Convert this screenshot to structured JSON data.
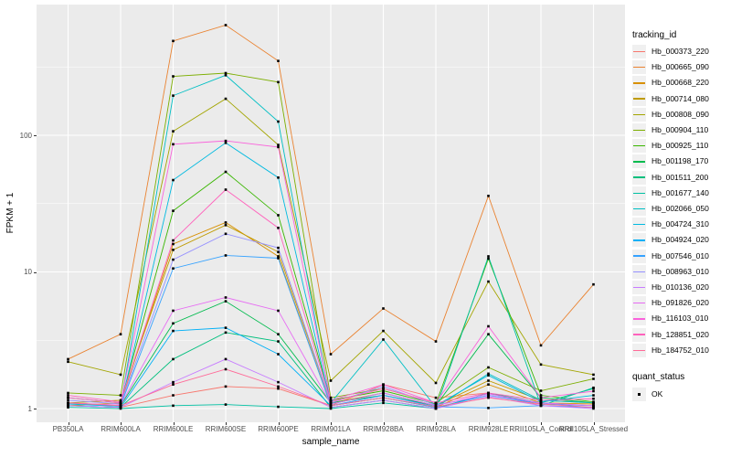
{
  "axes": {
    "x_title": "sample_name",
    "y_title": "FPKM + 1",
    "y_tick_labels": [
      "1",
      "10",
      "100"
    ]
  },
  "legend": {
    "tracking_title": "tracking_id",
    "quant_title": "quant_status",
    "quant_items": [
      {
        "label": "OK"
      }
    ]
  },
  "chart_data": {
    "type": "line",
    "title": "",
    "xlabel": "sample_name",
    "ylabel": "FPKM + 1",
    "y_scale": "log10",
    "grid": true,
    "legend_position": "right",
    "panel_bg": "#EBEBEB",
    "gridline_color": "#FFFFFF",
    "point_color": "#000000",
    "point_shape": "filled-square (quant_status = OK)",
    "y_ticks": [
      1,
      10,
      100
    ],
    "y_minor_gridlines": [
      3.1623,
      31.623,
      316.23
    ],
    "ylim_approx": [
      1,
      870
    ],
    "categories": [
      "PB350LA",
      "RRIM600LA",
      "RRIM600LE",
      "RRIM600SE",
      "RRIM600PE",
      "RRIM901LA",
      "RRIM928BA",
      "RRIM928LA",
      "RRIM928LE",
      "RRII105LA_Control",
      "RRII105LA_Stressed"
    ],
    "series": [
      {
        "name": "Hb_000373_220",
        "color": "#F8766D",
        "values": [
          1.05,
          1.02,
          1.25,
          1.45,
          1.4,
          1.05,
          1.5,
          1.2,
          1.3,
          1.05,
          1.02
        ]
      },
      {
        "name": "Hb_000665_090",
        "color": "#EA8331",
        "values": [
          2.3,
          3.5,
          490,
          640,
          350,
          2.5,
          5.4,
          3.1,
          36,
          2.9,
          8.1
        ]
      },
      {
        "name": "Hb_000668_220",
        "color": "#D89000",
        "values": [
          1.05,
          1.1,
          16,
          23,
          13,
          1.05,
          1.2,
          1.02,
          1.5,
          1.1,
          1.08
        ]
      },
      {
        "name": "Hb_000714_080",
        "color": "#C09B00",
        "values": [
          1.1,
          1.15,
          14.5,
          22,
          14,
          1.1,
          1.3,
          1.05,
          1.6,
          1.15,
          1.1
        ]
      },
      {
        "name": "Hb_000808_090",
        "color": "#A3A500",
        "values": [
          2.2,
          1.77,
          107,
          185,
          85,
          1.6,
          3.7,
          1.54,
          8.5,
          2.1,
          1.77
        ]
      },
      {
        "name": "Hb_000904_110",
        "color": "#7CAE00",
        "values": [
          1.3,
          1.25,
          270,
          285,
          245,
          1.2,
          1.4,
          1.1,
          2.0,
          1.35,
          1.65
        ]
      },
      {
        "name": "Hb_000925_110",
        "color": "#39B600",
        "values": [
          1.2,
          1.1,
          28,
          54,
          26,
          1.15,
          1.35,
          1.08,
          12.5,
          1.25,
          1.12
        ]
      },
      {
        "name": "Hb_001198_170",
        "color": "#00BB4E",
        "values": [
          1.1,
          1.05,
          4.2,
          6.1,
          3.5,
          1.1,
          1.25,
          1.05,
          3.5,
          1.2,
          1.1
        ]
      },
      {
        "name": "Hb_001511_200",
        "color": "#00BF7D",
        "values": [
          1.05,
          1.02,
          2.3,
          3.6,
          3.1,
          1.02,
          1.15,
          1.0,
          1.3,
          1.1,
          1.4
        ]
      },
      {
        "name": "Hb_001677_140",
        "color": "#00C1A3",
        "values": [
          1.02,
          1.0,
          1.05,
          1.07,
          1.03,
          1.0,
          1.1,
          1.0,
          13.0,
          1.05,
          1.42
        ]
      },
      {
        "name": "Hb_002066_050",
        "color": "#00BFC4",
        "values": [
          1.1,
          1.05,
          195,
          275,
          126,
          1.1,
          3.2,
          1.02,
          1.8,
          1.15,
          1.1
        ]
      },
      {
        "name": "Hb_004724_310",
        "color": "#00BAE0",
        "values": [
          1.08,
          1.04,
          47,
          88,
          49,
          1.08,
          1.3,
          1.05,
          1.75,
          1.12,
          1.25
        ]
      },
      {
        "name": "Hb_004924_020",
        "color": "#00B0F6",
        "values": [
          1.05,
          1.02,
          3.7,
          3.9,
          2.5,
          1.05,
          1.2,
          1.02,
          1.25,
          1.08,
          1.05
        ]
      },
      {
        "name": "Hb_007546_010",
        "color": "#35A2FF",
        "values": [
          1.1,
          1.05,
          10.6,
          13.2,
          12.6,
          1.05,
          1.25,
          1.03,
          1.01,
          1.05,
          1.02
        ]
      },
      {
        "name": "Hb_008963_010",
        "color": "#9590FF",
        "values": [
          1.15,
          1.08,
          12.3,
          19,
          15,
          1.1,
          1.45,
          1.06,
          1.25,
          1.1,
          1.05
        ]
      },
      {
        "name": "Hb_010136_020",
        "color": "#C77CFF",
        "values": [
          1.05,
          1.02,
          1.56,
          2.3,
          1.56,
          1.02,
          1.15,
          1.0,
          1.22,
          1.05,
          1.0
        ]
      },
      {
        "name": "Hb_091826_020",
        "color": "#E76BF3",
        "values": [
          1.1,
          1.06,
          5.2,
          6.5,
          5.2,
          1.08,
          1.3,
          1.05,
          1.28,
          1.1,
          1.05
        ]
      },
      {
        "name": "Hb_116103_010",
        "color": "#FA62DB",
        "values": [
          1.2,
          1.1,
          86,
          91,
          82,
          1.15,
          1.5,
          1.1,
          4.0,
          1.2,
          1.34
        ]
      },
      {
        "name": "Hb_128851_020",
        "color": "#FF62BC",
        "values": [
          1.25,
          1.12,
          17,
          40,
          21,
          1.12,
          1.4,
          1.1,
          1.3,
          1.15,
          1.18
        ]
      },
      {
        "name": "Hb_184752_010",
        "color": "#FF6A98",
        "values": [
          1.1,
          1.05,
          1.5,
          1.94,
          1.45,
          1.05,
          1.2,
          1.03,
          1.2,
          1.08,
          1.02
        ]
      }
    ]
  }
}
